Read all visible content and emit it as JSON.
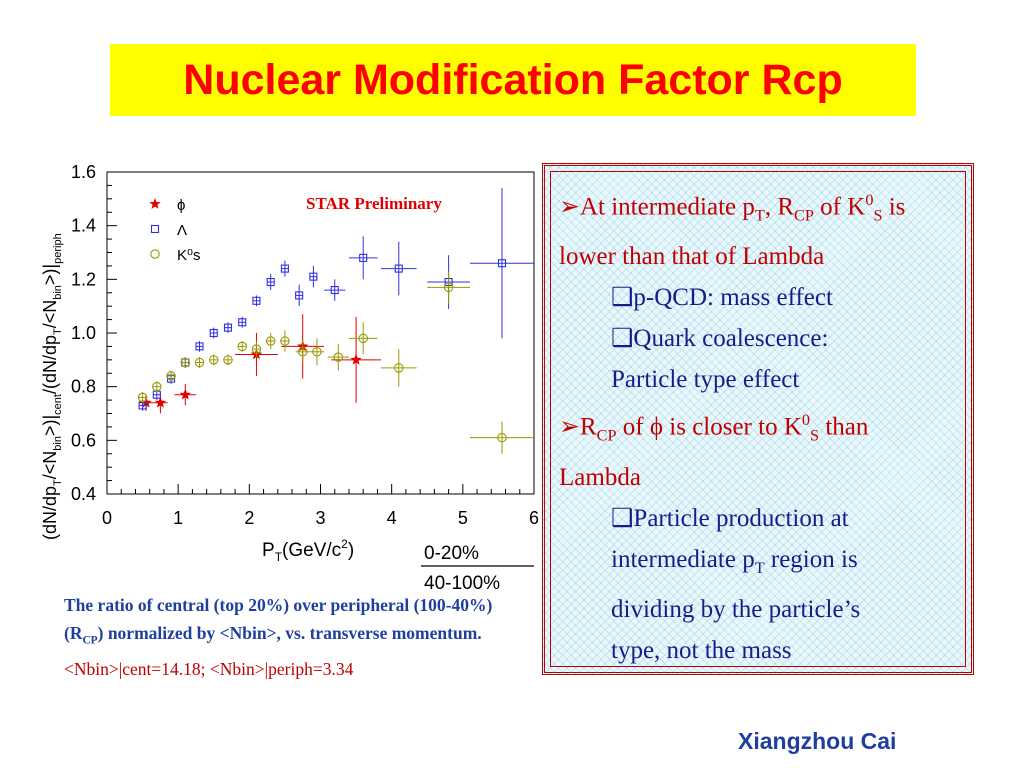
{
  "slide": {
    "title": "Nuclear Modification Factor Rcp",
    "author": "Xiangzhou Cai"
  },
  "caption": {
    "line_main_pre": "The ratio of central (top 20%) over peripheral (100-40%) (R",
    "line_main_sub": "CP",
    "line_main_post": ") normalized by <Nbin>, vs. transverse momentum.",
    "line_red": "<Nbin>|cent=14.18; <Nbin>|periph=3.34"
  },
  "bullets": {
    "b1_a": "At intermediate p",
    "b1_b": "T",
    "b1_c": ", R",
    "b1_d": "CP",
    "b1_e": " of K",
    "b1_f": "0",
    "b1_g": "S",
    "b1_h": " is lower than that of Lambda",
    "s1": "p-QCD: mass effect",
    "s2a": "Quark coalescence:",
    "s2b": "Particle type effect",
    "b2_a": "R",
    "b2_b": "CP",
    "b2_c": " of ϕ is closer to K",
    "b2_d": "0",
    "b2_e": "S",
    "b2_f": " than Lambda",
    "s3a": "Particle production at",
    "s3b_a": "intermediate p",
    "s3b_b": "T",
    "s3b_c": " region is",
    "s3c": "dividing by the particle’s",
    "s3d": "type, not the mass",
    "arrow": "➢",
    "box": "❑"
  },
  "chart_data": {
    "type": "scatter",
    "annotation": "STAR Preliminary",
    "xlabel": "P_T(GeV/c^2)",
    "ylabel": "(dN/dp_T/<N_bin>)|_cent/(dN/dp_T/<N_bin>)|_periph",
    "xlim": [
      0,
      6
    ],
    "ylim": [
      0.4,
      1.6
    ],
    "xticks": [
      "0",
      "1",
      "2",
      "3",
      "4",
      "5",
      "6"
    ],
    "yticks": [
      "0.4",
      "0.6",
      "0.8",
      "1.0",
      "1.2",
      "1.4",
      "1.6"
    ],
    "ratio_label_top": "0-20%",
    "ratio_label_bottom": "40-100%",
    "series": [
      {
        "name": "ϕ",
        "marker": "star",
        "color": "#e00000",
        "points": [
          {
            "x": 0.55,
            "y": 0.74,
            "ex": 0.1,
            "ey": 0.03
          },
          {
            "x": 0.75,
            "y": 0.74,
            "ex": 0.1,
            "ey": 0.04
          },
          {
            "x": 1.1,
            "y": 0.77,
            "ex": 0.15,
            "ey": 0.04
          },
          {
            "x": 2.1,
            "y": 0.92,
            "ex": 0.3,
            "ey": 0.08
          },
          {
            "x": 2.75,
            "y": 0.95,
            "ex": 0.3,
            "ey": 0.12
          },
          {
            "x": 3.5,
            "y": 0.9,
            "ex": 0.35,
            "ey": 0.16
          }
        ]
      },
      {
        "name": "Λ",
        "marker": "square",
        "color": "#3030e0",
        "points": [
          {
            "x": 0.5,
            "y": 0.73,
            "ex": 0.05,
            "ey": 0.02
          },
          {
            "x": 0.7,
            "y": 0.77,
            "ex": 0.05,
            "ey": 0.02
          },
          {
            "x": 0.9,
            "y": 0.83,
            "ex": 0.05,
            "ey": 0.02
          },
          {
            "x": 1.1,
            "y": 0.89,
            "ex": 0.05,
            "ey": 0.02
          },
          {
            "x": 1.3,
            "y": 0.95,
            "ex": 0.05,
            "ey": 0.02
          },
          {
            "x": 1.5,
            "y": 1.0,
            "ex": 0.05,
            "ey": 0.02
          },
          {
            "x": 1.7,
            "y": 1.02,
            "ex": 0.05,
            "ey": 0.02
          },
          {
            "x": 1.9,
            "y": 1.04,
            "ex": 0.05,
            "ey": 0.02
          },
          {
            "x": 2.1,
            "y": 1.12,
            "ex": 0.05,
            "ey": 0.02
          },
          {
            "x": 2.3,
            "y": 1.19,
            "ex": 0.05,
            "ey": 0.03
          },
          {
            "x": 2.5,
            "y": 1.24,
            "ex": 0.05,
            "ey": 0.03
          },
          {
            "x": 2.7,
            "y": 1.14,
            "ex": 0.05,
            "ey": 0.04
          },
          {
            "x": 2.9,
            "y": 1.21,
            "ex": 0.05,
            "ey": 0.04
          },
          {
            "x": 3.2,
            "y": 1.16,
            "ex": 0.15,
            "ey": 0.04
          },
          {
            "x": 3.6,
            "y": 1.28,
            "ex": 0.2,
            "ey": 0.08
          },
          {
            "x": 4.1,
            "y": 1.24,
            "ex": 0.25,
            "ey": 0.1
          },
          {
            "x": 4.8,
            "y": 1.19,
            "ex": 0.3,
            "ey": 0.1
          },
          {
            "x": 5.55,
            "y": 1.26,
            "ex": 0.45,
            "ey": 0.28
          }
        ]
      },
      {
        "name": "K⁰s",
        "marker": "circle",
        "color": "#999900",
        "points": [
          {
            "x": 0.5,
            "y": 0.76,
            "ex": 0.05,
            "ey": 0.02
          },
          {
            "x": 0.7,
            "y": 0.8,
            "ex": 0.05,
            "ey": 0.02
          },
          {
            "x": 0.9,
            "y": 0.84,
            "ex": 0.05,
            "ey": 0.02
          },
          {
            "x": 1.1,
            "y": 0.89,
            "ex": 0.05,
            "ey": 0.02
          },
          {
            "x": 1.3,
            "y": 0.89,
            "ex": 0.05,
            "ey": 0.02
          },
          {
            "x": 1.5,
            "y": 0.9,
            "ex": 0.05,
            "ey": 0.02
          },
          {
            "x": 1.7,
            "y": 0.9,
            "ex": 0.05,
            "ey": 0.02
          },
          {
            "x": 1.9,
            "y": 0.95,
            "ex": 0.05,
            "ey": 0.02
          },
          {
            "x": 2.1,
            "y": 0.94,
            "ex": 0.05,
            "ey": 0.03
          },
          {
            "x": 2.3,
            "y": 0.97,
            "ex": 0.05,
            "ey": 0.03
          },
          {
            "x": 2.5,
            "y": 0.97,
            "ex": 0.05,
            "ey": 0.04
          },
          {
            "x": 2.75,
            "y": 0.93,
            "ex": 0.1,
            "ey": 0.04
          },
          {
            "x": 2.95,
            "y": 0.93,
            "ex": 0.1,
            "ey": 0.05
          },
          {
            "x": 3.25,
            "y": 0.91,
            "ex": 0.15,
            "ey": 0.05
          },
          {
            "x": 3.6,
            "y": 0.98,
            "ex": 0.2,
            "ey": 0.06
          },
          {
            "x": 4.1,
            "y": 0.87,
            "ex": 0.25,
            "ey": 0.07
          },
          {
            "x": 4.8,
            "y": 1.17,
            "ex": 0.3,
            "ey": 0.06
          },
          {
            "x": 5.55,
            "y": 0.61,
            "ex": 0.45,
            "ey": 0.06
          }
        ]
      }
    ],
    "legend_position": "top-left",
    "grid": false
  }
}
